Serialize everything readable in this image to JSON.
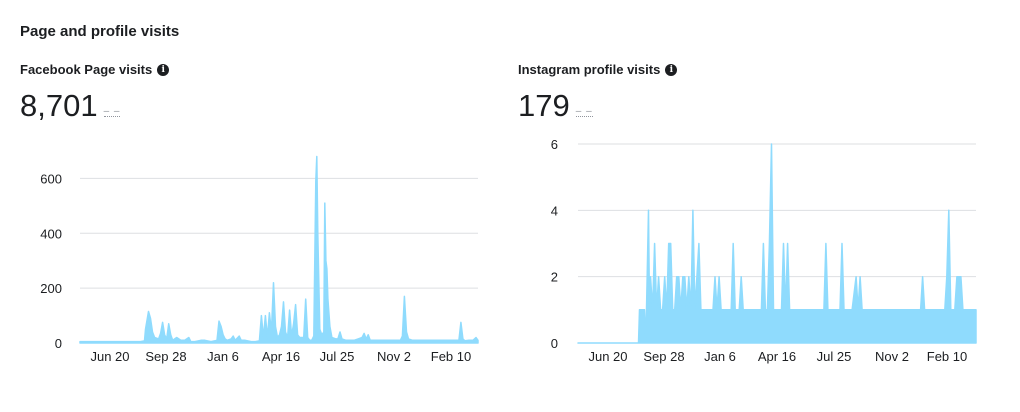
{
  "section": {
    "title": "Page and profile visits"
  },
  "facebook": {
    "title": "Facebook Page visits",
    "info_icon": "info-icon",
    "value": "8,701",
    "change": "– –",
    "chart_data": {
      "type": "area",
      "title": "Facebook Page visits",
      "xlabel": "",
      "ylabel": "",
      "ylim": [
        0,
        700
      ],
      "yticks": [
        0,
        200,
        400,
        600
      ],
      "ytick_labels": [
        "0",
        "200",
        "400",
        "600"
      ],
      "xticks": [
        "Jun 20",
        "Sep 28",
        "Jan 6",
        "Apr 16",
        "Jul 25",
        "Nov 2",
        "Feb 10"
      ],
      "x_points": 395,
      "grid": true,
      "series_color": "#8fdbfd",
      "series": [
        {
          "name": "Facebook Page visits",
          "points": [
            [
              0,
              5
            ],
            [
              60,
              5
            ],
            [
              64,
              8
            ],
            [
              65,
              50
            ],
            [
              68,
              115
            ],
            [
              70,
              90
            ],
            [
              72,
              40
            ],
            [
              74,
              20
            ],
            [
              78,
              15
            ],
            [
              80,
              35
            ],
            [
              82,
              75
            ],
            [
              84,
              30
            ],
            [
              86,
              15
            ],
            [
              88,
              70
            ],
            [
              90,
              30
            ],
            [
              92,
              10
            ],
            [
              96,
              20
            ],
            [
              100,
              10
            ],
            [
              104,
              10
            ],
            [
              108,
              20
            ],
            [
              110,
              5
            ],
            [
              114,
              5
            ],
            [
              120,
              10
            ],
            [
              124,
              10
            ],
            [
              130,
              5
            ],
            [
              136,
              10
            ],
            [
              138,
              80
            ],
            [
              140,
              60
            ],
            [
              142,
              30
            ],
            [
              144,
              15
            ],
            [
              146,
              10
            ],
            [
              150,
              15
            ],
            [
              152,
              25
            ],
            [
              154,
              10
            ],
            [
              158,
              25
            ],
            [
              160,
              10
            ],
            [
              164,
              10
            ],
            [
              170,
              5
            ],
            [
              174,
              5
            ],
            [
              178,
              8
            ],
            [
              180,
              100
            ],
            [
              182,
              20
            ],
            [
              184,
              100
            ],
            [
              186,
              20
            ],
            [
              188,
              110
            ],
            [
              190,
              40
            ],
            [
              192,
              220
            ],
            [
              194,
              60
            ],
            [
              196,
              20
            ],
            [
              198,
              30
            ],
            [
              200,
              60
            ],
            [
              202,
              150
            ],
            [
              204,
              40
            ],
            [
              206,
              20
            ],
            [
              208,
              120
            ],
            [
              210,
              25
            ],
            [
              212,
              70
            ],
            [
              214,
              140
            ],
            [
              216,
              30
            ],
            [
              218,
              20
            ],
            [
              220,
              20
            ],
            [
              222,
              20
            ],
            [
              224,
              160
            ],
            [
              226,
              20
            ],
            [
              228,
              10
            ],
            [
              230,
              10
            ],
            [
              232,
              25
            ],
            [
              234,
              590
            ],
            [
              235,
              680
            ],
            [
              236,
              400
            ],
            [
              238,
              50
            ],
            [
              240,
              30
            ],
            [
              242,
              40
            ],
            [
              243,
              510
            ],
            [
              244,
              300
            ],
            [
              245,
              270
            ],
            [
              246,
              160
            ],
            [
              248,
              60
            ],
            [
              250,
              20
            ],
            [
              254,
              15
            ],
            [
              256,
              15
            ],
            [
              258,
              40
            ],
            [
              260,
              15
            ],
            [
              264,
              10
            ],
            [
              268,
              10
            ],
            [
              272,
              10
            ],
            [
              276,
              15
            ],
            [
              280,
              20
            ],
            [
              282,
              35
            ],
            [
              284,
              15
            ],
            [
              286,
              30
            ],
            [
              288,
              10
            ],
            [
              292,
              10
            ],
            [
              296,
              10
            ],
            [
              300,
              10
            ],
            [
              306,
              10
            ],
            [
              310,
              10
            ],
            [
              318,
              10
            ],
            [
              320,
              25
            ],
            [
              322,
              170
            ],
            [
              324,
              40
            ],
            [
              326,
              15
            ],
            [
              330,
              10
            ],
            [
              340,
              10
            ],
            [
              350,
              10
            ],
            [
              360,
              10
            ],
            [
              370,
              10
            ],
            [
              376,
              10
            ],
            [
              378,
              75
            ],
            [
              380,
              15
            ],
            [
              382,
              8
            ],
            [
              386,
              10
            ],
            [
              390,
              10
            ],
            [
              393,
              20
            ],
            [
              395,
              10
            ]
          ]
        }
      ]
    }
  },
  "instagram": {
    "title": "Instagram profile visits",
    "info_icon": "info-icon",
    "value": "179",
    "change": "– –",
    "chart_data": {
      "type": "area",
      "title": "Instagram profile visits",
      "xlabel": "",
      "ylabel": "",
      "ylim": [
        0,
        6
      ],
      "yticks": [
        0,
        2,
        4,
        6
      ],
      "ytick_labels": [
        "0",
        "2",
        "4",
        "6"
      ],
      "xticks": [
        "Jun 20",
        "Sep 28",
        "Jan 6",
        "Apr 16",
        "Jul 25",
        "Nov 2",
        "Feb 10"
      ],
      "x_points": 395,
      "grid": true,
      "series_color": "#8fdbfd",
      "series": [
        {
          "name": "Instagram profile visits",
          "points": [
            [
              0,
              0
            ],
            [
              60,
              0
            ],
            [
              61,
              1
            ],
            [
              66,
              1
            ],
            [
              67,
              0
            ],
            [
              68,
              1
            ],
            [
              70,
              4
            ],
            [
              71,
              1
            ],
            [
              72,
              2
            ],
            [
              74,
              1
            ],
            [
              76,
              3
            ],
            [
              78,
              1
            ],
            [
              80,
              2
            ],
            [
              82,
              1
            ],
            [
              84,
              1
            ],
            [
              86,
              2
            ],
            [
              88,
              1
            ],
            [
              90,
              3
            ],
            [
              92,
              3
            ],
            [
              94,
              1
            ],
            [
              96,
              1
            ],
            [
              98,
              2
            ],
            [
              100,
              2
            ],
            [
              102,
              1
            ],
            [
              104,
              2
            ],
            [
              106,
              2
            ],
            [
              108,
              1
            ],
            [
              110,
              2
            ],
            [
              112,
              1
            ],
            [
              114,
              4
            ],
            [
              116,
              1
            ],
            [
              118,
              2
            ],
            [
              120,
              3
            ],
            [
              122,
              1
            ],
            [
              124,
              1
            ],
            [
              126,
              1
            ],
            [
              128,
              1
            ],
            [
              130,
              1
            ],
            [
              132,
              1
            ],
            [
              134,
              1
            ],
            [
              136,
              2
            ],
            [
              138,
              1
            ],
            [
              140,
              2
            ],
            [
              142,
              1
            ],
            [
              144,
              1
            ],
            [
              146,
              1
            ],
            [
              148,
              1
            ],
            [
              150,
              1
            ],
            [
              152,
              1
            ],
            [
              154,
              3
            ],
            [
              156,
              1
            ],
            [
              158,
              1
            ],
            [
              160,
              1
            ],
            [
              162,
              2
            ],
            [
              164,
              1
            ],
            [
              166,
              1
            ],
            [
              168,
              1
            ],
            [
              170,
              1
            ],
            [
              172,
              1
            ],
            [
              174,
              1
            ],
            [
              176,
              1
            ],
            [
              178,
              1
            ],
            [
              180,
              1
            ],
            [
              182,
              1
            ],
            [
              184,
              3
            ],
            [
              186,
              1
            ],
            [
              188,
              1
            ],
            [
              190,
              3
            ],
            [
              192,
              6
            ],
            [
              194,
              1
            ],
            [
              196,
              1
            ],
            [
              198,
              1
            ],
            [
              200,
              1
            ],
            [
              202,
              1
            ],
            [
              204,
              3
            ],
            [
              206,
              1
            ],
            [
              208,
              3
            ],
            [
              210,
              1
            ],
            [
              212,
              1
            ],
            [
              214,
              1
            ],
            [
              216,
              1
            ],
            [
              218,
              1
            ],
            [
              222,
              1
            ],
            [
              224,
              1
            ],
            [
              226,
              1
            ],
            [
              228,
              1
            ],
            [
              232,
              1
            ],
            [
              234,
              1
            ],
            [
              236,
              1
            ],
            [
              238,
              1
            ],
            [
              240,
              1
            ],
            [
              242,
              1
            ],
            [
              244,
              1
            ],
            [
              246,
              3
            ],
            [
              248,
              1
            ],
            [
              250,
              1
            ],
            [
              252,
              1
            ],
            [
              254,
              1
            ],
            [
              256,
              1
            ],
            [
              258,
              1
            ],
            [
              260,
              1
            ],
            [
              262,
              3
            ],
            [
              264,
              1
            ],
            [
              266,
              1
            ],
            [
              268,
              1
            ],
            [
              272,
              1
            ],
            [
              276,
              2
            ],
            [
              278,
              1
            ],
            [
              280,
              2
            ],
            [
              282,
              1
            ],
            [
              284,
              1
            ],
            [
              286,
              1
            ],
            [
              288,
              1
            ],
            [
              290,
              1
            ],
            [
              292,
              1
            ],
            [
              294,
              1
            ],
            [
              296,
              1
            ],
            [
              298,
              1
            ],
            [
              300,
              1
            ],
            [
              306,
              1
            ],
            [
              310,
              1
            ],
            [
              314,
              1
            ],
            [
              324,
              1
            ],
            [
              326,
              1
            ],
            [
              328,
              1
            ],
            [
              334,
              1
            ],
            [
              336,
              1
            ],
            [
              338,
              1
            ],
            [
              340,
              1
            ],
            [
              342,
              2
            ],
            [
              344,
              1
            ],
            [
              350,
              1
            ],
            [
              356,
              1
            ],
            [
              358,
              1
            ],
            [
              364,
              1
            ],
            [
              366,
              2
            ],
            [
              368,
              4
            ],
            [
              370,
              1
            ],
            [
              372,
              1
            ],
            [
              374,
              1
            ],
            [
              376,
              2
            ],
            [
              378,
              2
            ],
            [
              380,
              2
            ],
            [
              382,
              1
            ],
            [
              384,
              1
            ],
            [
              386,
              1
            ],
            [
              388,
              1
            ],
            [
              390,
              1
            ],
            [
              392,
              1
            ],
            [
              394,
              1
            ],
            [
              395,
              1
            ]
          ]
        }
      ]
    }
  }
}
